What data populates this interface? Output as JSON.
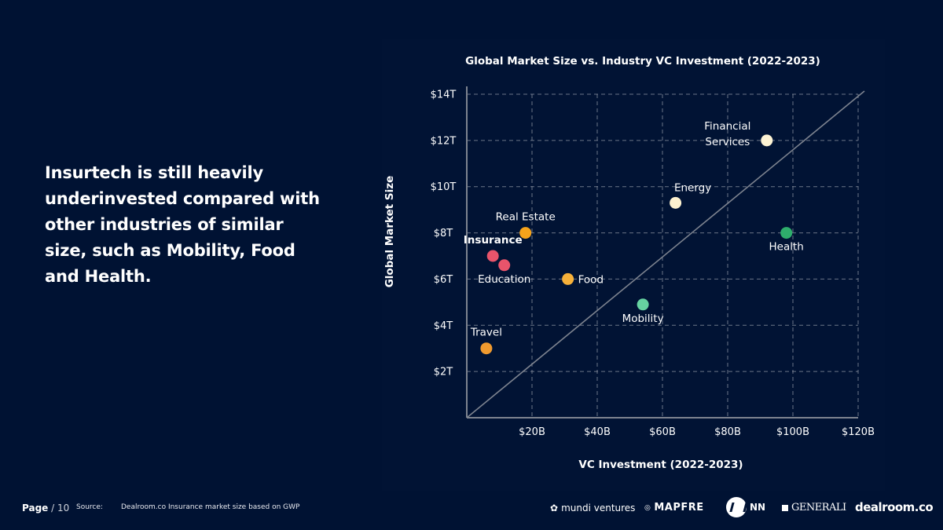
{
  "headline": "Insurtech is still heavily underinvested compared with other industries of similar size, such as Mobility, Food and Health.",
  "footer": {
    "page_label": "Page",
    "page_total": "/ 10",
    "source_label": "Source:",
    "source_text": "Dealroom.co  Insurance market size based on GWP",
    "logos": {
      "mundi": "mundi ventures",
      "mapfre": "MAPFRE",
      "nn": "NN",
      "generali": "GENERALI",
      "dealroom": "dealroom.co"
    }
  },
  "chart_data": {
    "type": "scatter",
    "title": "Global Market Size vs. Industry VC Investment (2022-2023)",
    "xlabel": "VC Investment (2022-2023)",
    "ylabel": "Global Market Size",
    "xlim": [
      0,
      120
    ],
    "ylim": [
      0,
      14
    ],
    "x_unit": "$B",
    "y_unit": "$T",
    "x_ticks": [
      20,
      40,
      60,
      80,
      100,
      120
    ],
    "x_tick_labels": [
      "$20B",
      "$40B",
      "$60B",
      "$80B",
      "$100B",
      "$120B"
    ],
    "y_ticks": [
      2,
      4,
      6,
      8,
      10,
      12,
      14
    ],
    "y_tick_labels": [
      "$2T",
      "$4T",
      "$6T",
      "$8T",
      "$10T",
      "$12T",
      "$14T"
    ],
    "grid": true,
    "reference_line": {
      "from": [
        0,
        0
      ],
      "to": [
        120,
        14
      ]
    },
    "points": [
      {
        "label": "Financial\nServices",
        "x": 92,
        "y": 12.0,
        "color": "#fdf3d4",
        "label_pos": "left"
      },
      {
        "label": "Energy",
        "x": 64,
        "y": 9.3,
        "color": "#fdf1cf",
        "label_pos": "above-right"
      },
      {
        "label": "Real Estate",
        "x": 18,
        "y": 8.0,
        "color": "#f6a31b",
        "label_pos": "above"
      },
      {
        "label": "Health",
        "x": 98,
        "y": 8.0,
        "color": "#2eae6c",
        "label_pos": "below"
      },
      {
        "label": "Insurance",
        "x": 8,
        "y": 7.0,
        "color": "#e8546b",
        "label_pos": "above",
        "bold": true
      },
      {
        "label": "",
        "x": 11.5,
        "y": 6.6,
        "color": "#e8546b",
        "label_pos": "none"
      },
      {
        "label": "Education",
        "x": 11.5,
        "y": 6.6,
        "color": "#e8546b",
        "label_pos": "below",
        "label_only": true
      },
      {
        "label": "Food",
        "x": 31,
        "y": 6.0,
        "color": "#f7b13a",
        "label_pos": "right"
      },
      {
        "label": "Mobility",
        "x": 54,
        "y": 4.9,
        "color": "#66d3a1",
        "label_pos": "below"
      },
      {
        "label": "Travel",
        "x": 6,
        "y": 3.0,
        "color": "#f09a2f",
        "label_pos": "above"
      }
    ]
  }
}
